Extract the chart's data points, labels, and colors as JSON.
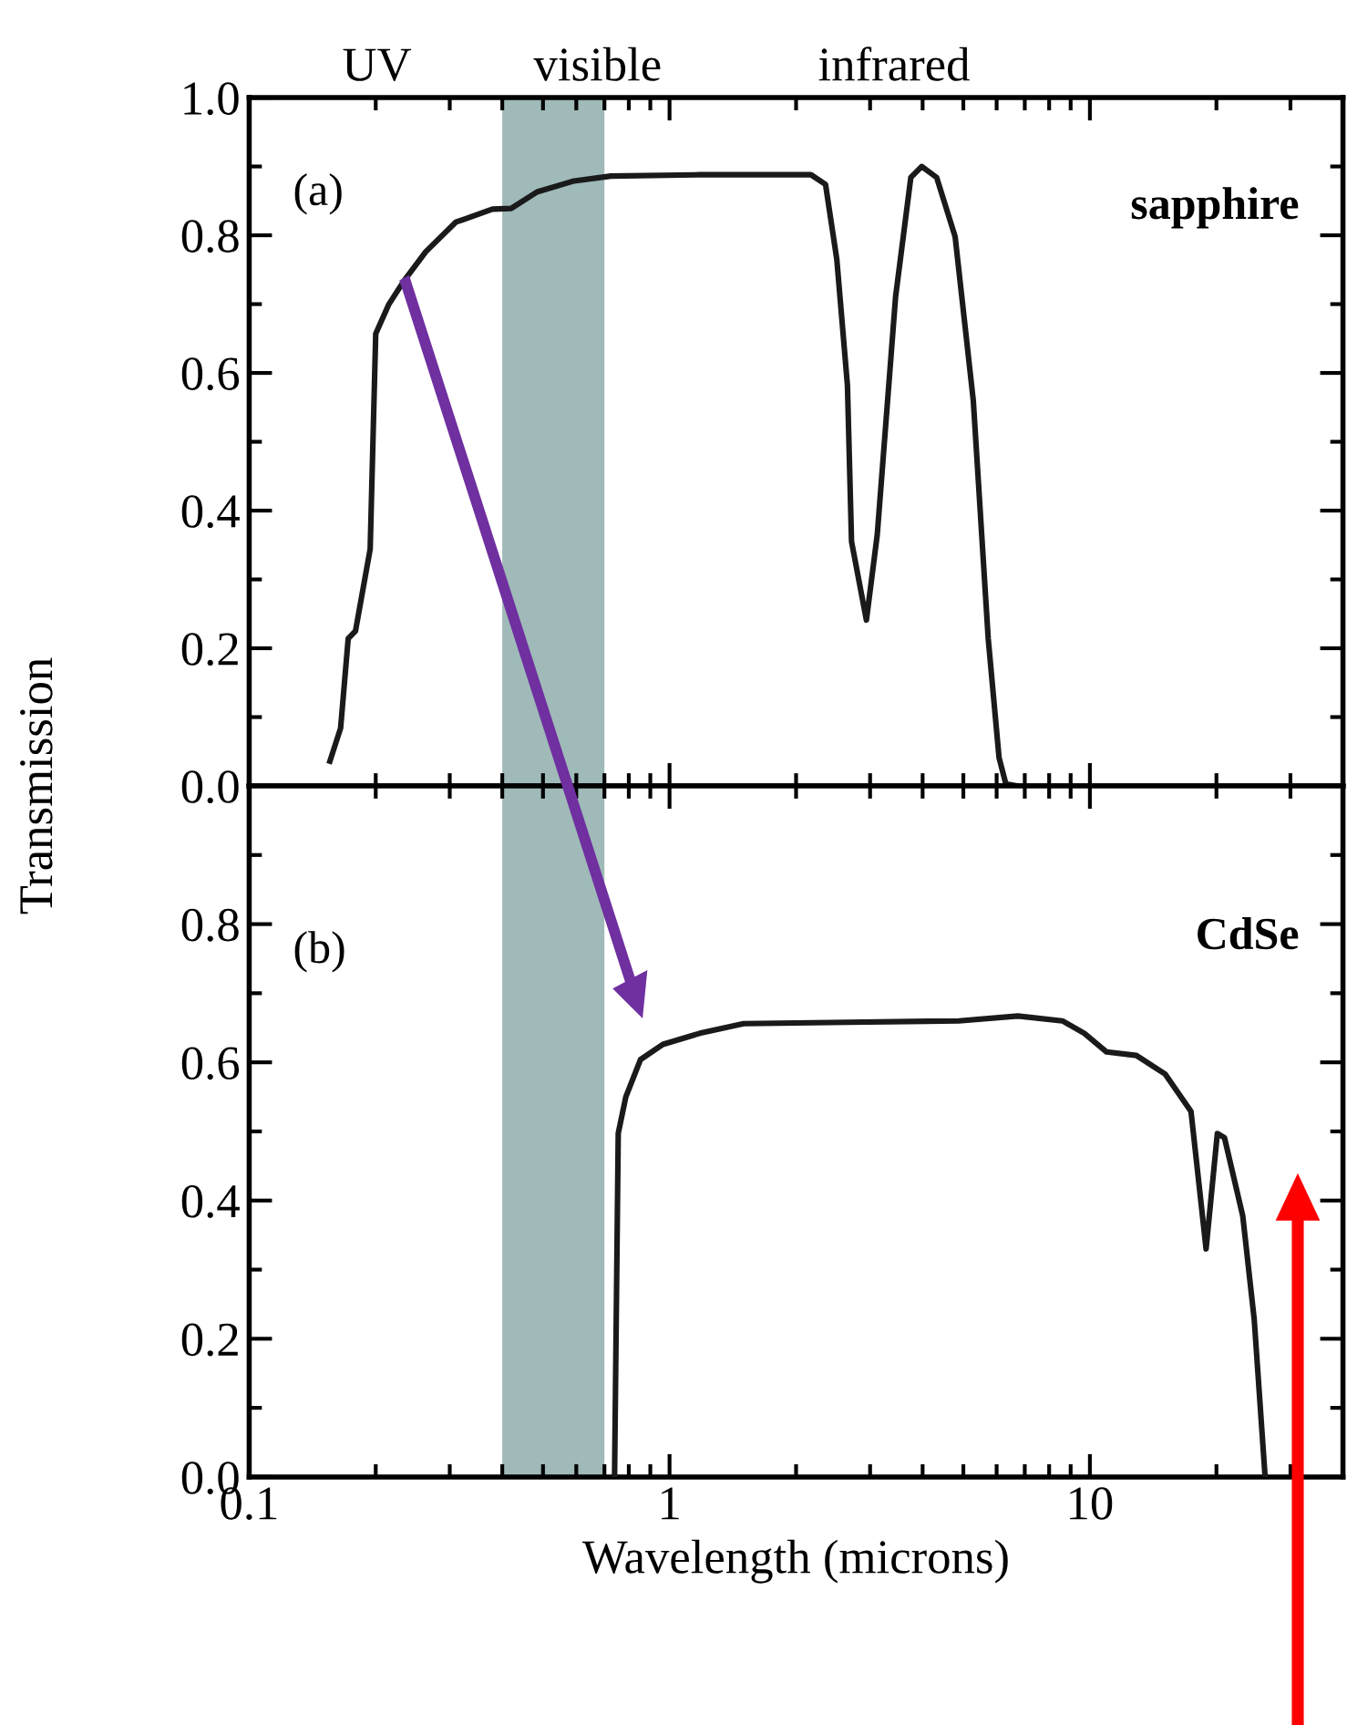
{
  "chart_data": [
    {
      "type": "line",
      "ylabel": "Transmission",
      "annotations": [
        "UV",
        "visible",
        "infrared",
        "(a)",
        "sapphire"
      ],
      "series": [
        {
          "color": "#1a1a1a",
          "x": [
            0.1556,
            0.165,
            0.172,
            0.179,
            0.194,
            0.2,
            0.215,
            0.233,
            0.263,
            0.31,
            0.379,
            0.42,
            0.484,
            0.593,
            0.725,
            1.18,
            2.17,
            2.35,
            2.5,
            2.65,
            2.71,
            2.94,
            3.12,
            3.45,
            3.75,
            3.98,
            4.32,
            4.78,
            5.28,
            5.73,
            6.08,
            6.31,
            6.7
          ],
          "values": [
            0.036,
            0.084,
            0.214,
            0.225,
            0.344,
            0.657,
            0.7,
            0.733,
            0.776,
            0.819,
            0.838,
            0.839,
            0.863,
            0.879,
            0.886,
            0.888,
            0.888,
            0.874,
            0.765,
            0.582,
            0.355,
            0.241,
            0.365,
            0.711,
            0.884,
            0.9,
            0.884,
            0.798,
            0.56,
            0.214,
            0.041,
            0.003,
            0.0
          ]
        }
      ],
      "bands": [
        {
          "axis": "x",
          "from": 0.4,
          "to": 0.7,
          "color": "#9fbab8"
        }
      ],
      "log": "x",
      "xlim": [
        0.1,
        40
      ],
      "xticks": [
        0.1,
        1,
        10
      ],
      "ylim": [
        0,
        1.0
      ],
      "yticks": [
        {
          "value": 0,
          "label": "0.0"
        },
        {
          "value": 0.2,
          "label": "0.2"
        },
        {
          "value": 0.4,
          "label": "0.4"
        },
        {
          "value": 0.6,
          "label": "0.6"
        },
        {
          "value": 0.8,
          "label": "0.8"
        },
        {
          "value": 1.0,
          "label": "1.0"
        }
      ],
      "tick_labels": "y",
      "grid": false,
      "legend": false
    },
    {
      "type": "line",
      "xlabel": "Wavelength (microns)",
      "annotations": [
        "(b)",
        "CdSe"
      ],
      "series": [
        {
          "color": "#1a1a1a",
          "x": [
            0.74,
            0.755,
            0.787,
            0.853,
            0.964,
            1.18,
            1.5,
            2.65,
            4.88,
            6.74,
            8.6,
            9.7,
            10.96,
            12.9,
            15.1,
            17.4,
            18.9,
            20.1,
            20.9,
            23.1,
            24.6,
            26.1
          ],
          "values": [
            0.002,
            0.497,
            0.55,
            0.604,
            0.626,
            0.642,
            0.656,
            0.658,
            0.66,
            0.667,
            0.66,
            0.642,
            0.615,
            0.61,
            0.583,
            0.529,
            0.33,
            0.497,
            0.491,
            0.378,
            0.228,
            0.002
          ]
        }
      ],
      "bands": [
        {
          "axis": "x",
          "from": 0.4,
          "to": 0.7,
          "color": "#9fbab8"
        }
      ],
      "log": "x",
      "xlim": [
        0.1,
        40
      ],
      "xticks": [
        0.1,
        1,
        10
      ],
      "ylim": [
        0,
        1.0
      ],
      "yticks": [
        {
          "value": 0,
          "label": "0.0"
        },
        {
          "value": 0.2,
          "label": "0.2"
        },
        {
          "value": 0.4,
          "label": "0.4"
        },
        {
          "value": 0.6,
          "label": "0.6"
        },
        {
          "value": 0.8,
          "label": "0.8"
        }
      ],
      "grid": false,
      "legend": false
    }
  ]
}
